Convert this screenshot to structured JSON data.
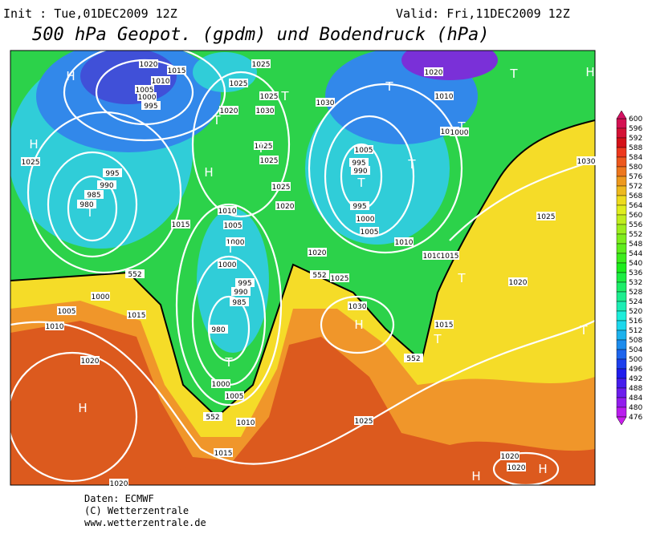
{
  "header": {
    "init": "Init : Tue,01DEC2009 12Z",
    "valid": "Valid: Fri,11DEC2009 12Z",
    "title": "500 hPa Geopot. (gpdm) und Bodendruck (hPa)"
  },
  "colorbar": {
    "labels": [
      "600",
      "596",
      "592",
      "588",
      "584",
      "580",
      "576",
      "572",
      "568",
      "564",
      "560",
      "556",
      "552",
      "548",
      "544",
      "540",
      "536",
      "532",
      "528",
      "524",
      "520",
      "516",
      "512",
      "508",
      "504",
      "500",
      "496",
      "492",
      "488",
      "484",
      "480",
      "476"
    ]
  },
  "isobar_labels": [
    "1020",
    "1015",
    "1010",
    "1005",
    "1000",
    "995",
    "1025",
    "1025",
    "1025",
    "1030",
    "1020",
    "1030",
    "1025",
    "1025",
    "1025",
    "995",
    "990",
    "985",
    "980",
    "1025",
    "1020",
    "1015",
    "1010",
    "1005",
    "1000",
    "1000",
    "1020",
    "1010",
    "1000",
    "1000",
    "1005",
    "995",
    "990",
    "995",
    "1000",
    "1005",
    "1010",
    "1010",
    "1015",
    "1020",
    "1025",
    "552",
    "552",
    "1000",
    "1005",
    "1010",
    "1015",
    "995",
    "990",
    "985",
    "980",
    "1030",
    "1015",
    "552",
    "1000",
    "1005",
    "552",
    "1010",
    "1020",
    "1025",
    "1015",
    "1020",
    "1020",
    "1020",
    "1025",
    "1020",
    "1030"
  ],
  "pressure_markers": [
    "H",
    "H",
    "H",
    "T",
    "T",
    "T",
    "T",
    "T",
    "T",
    "T",
    "T",
    "T",
    "H",
    "T",
    "T",
    "H",
    "T",
    "T",
    "T",
    "H",
    "H",
    "H"
  ],
  "footer": {
    "source": "Daten: ECMWF",
    "copyright": "(C) Wetterzentrale",
    "url": "www.wetterzentrale.de"
  }
}
